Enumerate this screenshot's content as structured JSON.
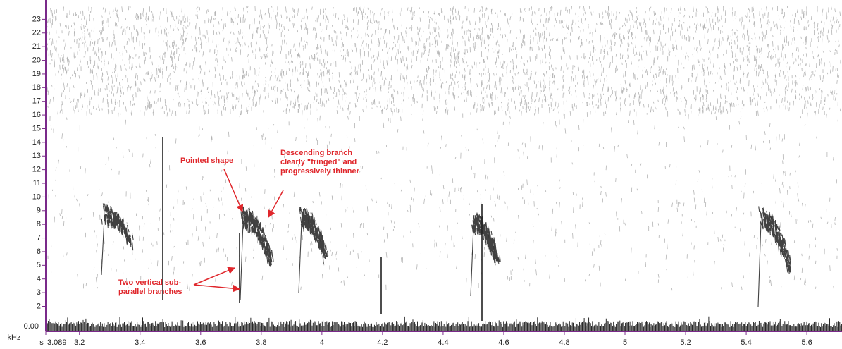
{
  "chart_data": {
    "type": "spectrogram",
    "y_label": "kHz",
    "x_label": "s",
    "waveform_label": "0.00",
    "xlim": [
      3.089,
      5.716
    ],
    "xticks": [
      3.089,
      3.2,
      3.4,
      3.6,
      3.8,
      4,
      4.2,
      4.4,
      4.6,
      4.8,
      5,
      5.2,
      5.4,
      5.6
    ],
    "ylim": [
      1.2,
      24
    ],
    "yticks": [
      2,
      3,
      4,
      5,
      6,
      7,
      8,
      9,
      10,
      11,
      12,
      13,
      14,
      15,
      16,
      17,
      18,
      19,
      20,
      21,
      22,
      23
    ],
    "axis_color": "#7a2a8a",
    "annotations": [
      {
        "lines": [
          "Pointed shape"
        ]
      },
      {
        "lines": [
          "Descending branch",
          "clearly \"fringed\" and",
          "progressively thinner"
        ]
      },
      {
        "lines": [
          "Two vertical sub-",
          "parallel branches"
        ]
      }
    ]
  }
}
